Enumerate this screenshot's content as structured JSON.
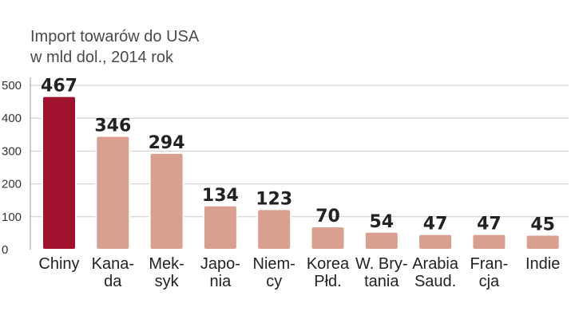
{
  "title_line1": "Import towarów do USA",
  "title_line2": "w mld dol., 2014 rok",
  "colors": {
    "highlight": "#a1122e",
    "bar": "#d9a090",
    "grid": "#cccccc"
  },
  "chart_data": {
    "type": "bar",
    "title": "Import towarów do USA w mld dol., 2014 rok",
    "categories": [
      [
        "Chiny"
      ],
      [
        "Kana-",
        "da"
      ],
      [
        "Mek-",
        "syk"
      ],
      [
        "Japo-",
        "nia"
      ],
      [
        "Niem-",
        "cy"
      ],
      [
        "Korea",
        "Płd."
      ],
      [
        "W. Bry-",
        "tania"
      ],
      [
        "Arabia",
        "Saud."
      ],
      [
        "Fran-",
        "cja"
      ],
      [
        "Indie"
      ]
    ],
    "values": [
      467,
      346,
      294,
      134,
      123,
      70,
      54,
      47,
      47,
      45
    ],
    "value_labels": [
      "467",
      "346",
      "294",
      "134",
      "123",
      "70",
      "54",
      "47",
      "47",
      "45"
    ],
    "yticks": [
      "0",
      "100",
      "200",
      "300",
      "400",
      "500"
    ],
    "ylim": [
      0,
      500
    ],
    "grid": true,
    "highlight_index": 0
  }
}
